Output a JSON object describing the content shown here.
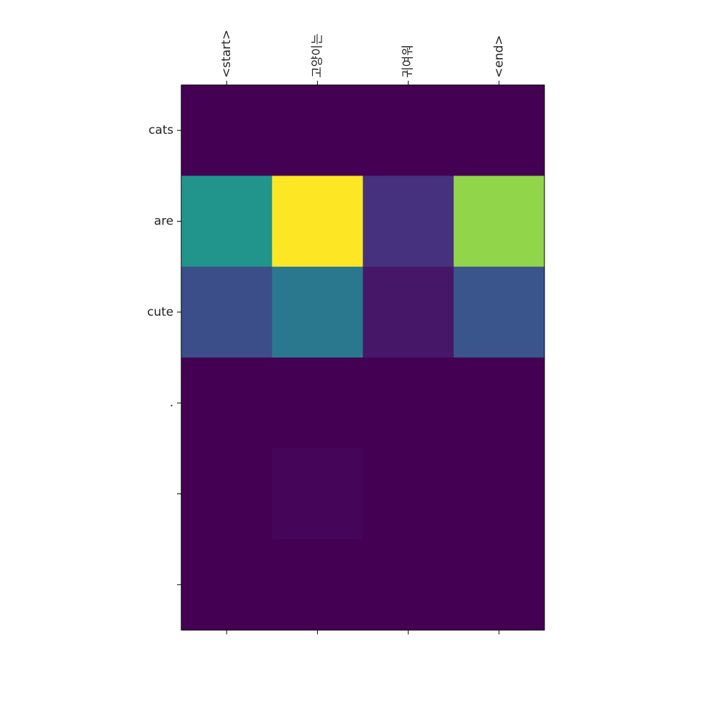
{
  "chart_data": {
    "type": "heatmap",
    "title": "",
    "xlabel": "",
    "ylabel": "",
    "x_tick_position": "top",
    "x_tick_rotation": "vertical",
    "grid": false,
    "colormap": "viridis",
    "value_range": [
      0,
      1
    ],
    "x_categories": [
      "<start>",
      "고양이는",
      "귀여워",
      "<end>"
    ],
    "y_categories": [
      "cats",
      "are",
      "cute",
      ".",
      "",
      ""
    ],
    "values": [
      [
        0.0,
        0.0,
        0.0,
        0.0
      ],
      [
        0.65,
        1.0,
        0.18,
        0.9
      ],
      [
        0.3,
        0.5,
        0.08,
        0.33
      ],
      [
        0.0,
        0.0,
        0.0,
        0.0
      ],
      [
        0.0,
        0.02,
        0.0,
        0.0
      ],
      [
        0.0,
        0.0,
        0.0,
        0.0
      ]
    ]
  }
}
